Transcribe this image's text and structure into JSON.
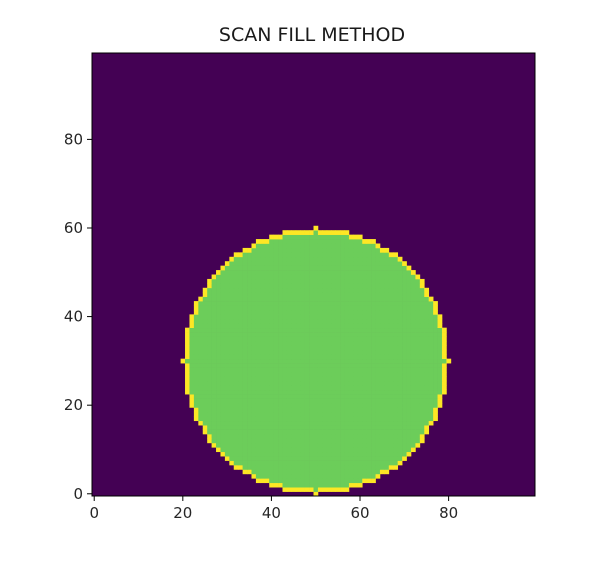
{
  "chart_data": {
    "type": "heatmap",
    "title": "SCAN FILL METHOD",
    "xlabel": "",
    "ylabel": "",
    "grid_size": [
      100,
      100
    ],
    "origin": "lower",
    "xlim": [
      0,
      99
    ],
    "ylim": [
      0,
      99
    ],
    "x_ticks": [
      0,
      20,
      40,
      60,
      80
    ],
    "y_ticks": [
      0,
      20,
      40,
      60,
      80
    ],
    "grid": false,
    "colors": {
      "background": "#440154",
      "fill": "#6ccd5a",
      "boundary": "#fde725"
    },
    "shapes": [
      {
        "name": "filled circle",
        "center": [
          50,
          30
        ],
        "radius": 30,
        "value_inside": 0.8,
        "value_boundary": 1.0,
        "value_outside": 0.0
      }
    ]
  }
}
